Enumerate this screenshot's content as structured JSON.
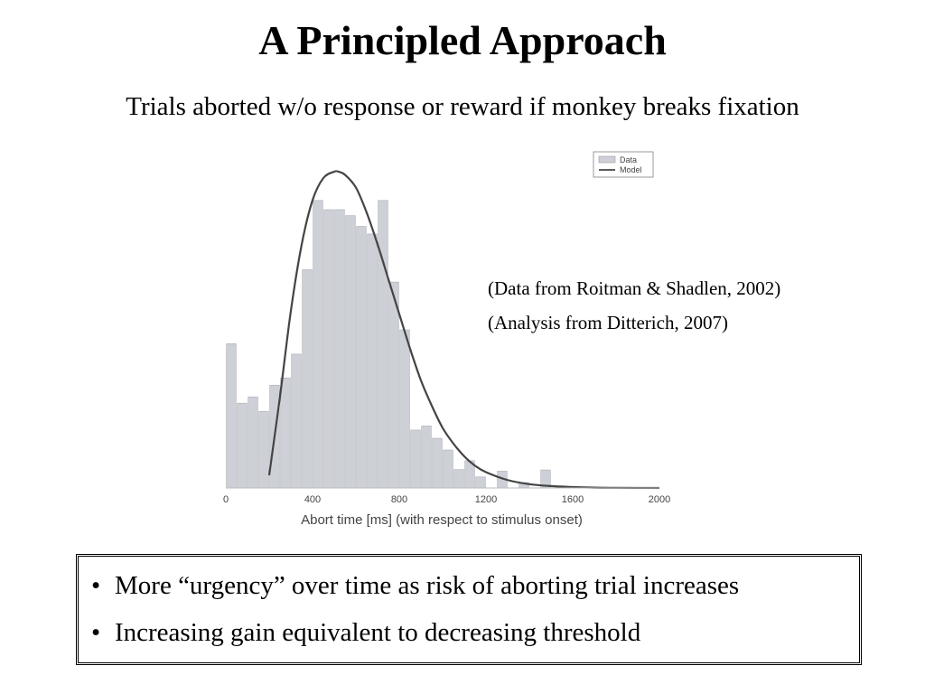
{
  "slide": {
    "title": "A Principled Approach",
    "subtitle": "Trials aborted w/o response or reward if monkey breaks fixation",
    "citations": [
      "(Data from Roitman & Shadlen, 2002)",
      "(Analysis from Ditterich, 2007)"
    ],
    "bullets": [
      "More “urgency” over time as risk of aborting trial increases",
      "Increasing gain equivalent to decreasing threshold"
    ],
    "bullet_glyph": "•"
  },
  "chart_data": {
    "type": "bar",
    "xlabel": "Abort time [ms] (with respect to stimulus onset)",
    "ylabel": "",
    "xlim": [
      0,
      2000
    ],
    "xticks": [
      0,
      400,
      800,
      1200,
      1600,
      2000
    ],
    "ylim": [
      0,
      1
    ],
    "grid": false,
    "legend": {
      "placement": "top-right",
      "entries": [
        "Data",
        "Model"
      ]
    },
    "bin_width_ms": 50,
    "bars": {
      "name": "Data",
      "color": "#cdd0d6",
      "x": [
        25,
        75,
        125,
        175,
        225,
        275,
        325,
        375,
        425,
        475,
        525,
        575,
        625,
        675,
        725,
        775,
        825,
        875,
        925,
        975,
        1025,
        1075,
        1125,
        1175,
        1275,
        1375,
        1475
      ],
      "values": [
        0.456,
        0.268,
        0.288,
        0.242,
        0.325,
        0.348,
        0.423,
        0.69,
        0.909,
        0.88,
        0.88,
        0.861,
        0.827,
        0.803,
        0.909,
        0.651,
        0.5,
        0.183,
        0.196,
        0.157,
        0.12,
        0.058,
        0.086,
        0.035,
        0.053,
        0.017,
        0.057
      ]
    },
    "model": {
      "name": "Model",
      "color": "#444444",
      "x": [
        200,
        250,
        300,
        350,
        400,
        450,
        500,
        520,
        550,
        600,
        650,
        700,
        750,
        800,
        850,
        900,
        950,
        1000,
        1050,
        1100,
        1150,
        1200,
        1300,
        1400,
        1500,
        1600,
        1700,
        1800,
        1900,
        2000
      ],
      "values": [
        0.04,
        0.29,
        0.56,
        0.77,
        0.91,
        0.98,
        1.0,
        1.0,
        0.99,
        0.95,
        0.87,
        0.77,
        0.66,
        0.55,
        0.44,
        0.34,
        0.26,
        0.19,
        0.14,
        0.1,
        0.07,
        0.05,
        0.025,
        0.012,
        0.006,
        0.003,
        0.001,
        0.0005,
        0.0002,
        0.0001
      ]
    }
  }
}
